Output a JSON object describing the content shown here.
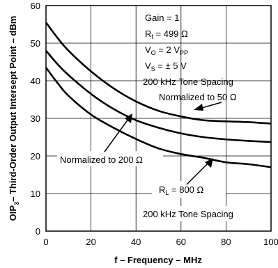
{
  "chart_data": {
    "type": "line",
    "title": "",
    "xlabel": "f – Frequency – MHz",
    "ylabel_main": "OIP",
    "ylabel_sub": "3",
    "ylabel_rest": "– Third-Order Output Intersept Point – dBm",
    "xlim": [
      0,
      100
    ],
    "ylim": [
      0,
      60
    ],
    "x_ticks": [
      0,
      20,
      40,
      60,
      80,
      100
    ],
    "y_ticks": [
      0,
      10,
      20,
      30,
      40,
      50,
      60
    ],
    "grid": true,
    "series": [
      {
        "x": [
          0,
          5,
          10,
          20,
          30,
          40,
          50,
          60,
          70,
          80,
          90,
          100
        ],
        "values": [
          55.5,
          51.5,
          48,
          42.5,
          38,
          34.5,
          32,
          30.5,
          29.5,
          29.2,
          29,
          28.6
        ]
      },
      {
        "x": [
          0,
          5,
          10,
          20,
          30,
          40,
          50,
          60,
          70,
          80,
          90,
          100
        ],
        "values": [
          48,
          44.5,
          41.5,
          36.5,
          32.5,
          29.5,
          27.5,
          26,
          25,
          24.4,
          24,
          23.7
        ]
      },
      {
        "x": [
          0,
          5,
          10,
          20,
          30,
          40,
          50,
          60,
          70,
          80,
          90,
          100
        ],
        "values": [
          43.5,
          39.5,
          36,
          31,
          27.5,
          24.5,
          22,
          20.5,
          19.5,
          18.3,
          17.8,
          17
        ]
      }
    ],
    "annotations": {
      "gain": "Gain = 1",
      "rf_main": "R",
      "rf_sub": "f",
      "rf_rest": " = 499 Ω",
      "vo_main": "V",
      "vo_sub": "O",
      "vo_rest": " = 2 V",
      "vo_unit_sub": "PP",
      "vs_main": "V",
      "vs_sub": "S",
      "vs_rest": " = ± 5 V",
      "tone_top": "200 kHz Tone Spacing",
      "norm50": "Normalized to 50 Ω",
      "norm200": "Normalized to 200 Ω",
      "rl_main": "R",
      "rl_sub": "L",
      "rl_rest": " = 800 Ω",
      "tone_bottom": "200 kHz Tone Spacing"
    }
  }
}
